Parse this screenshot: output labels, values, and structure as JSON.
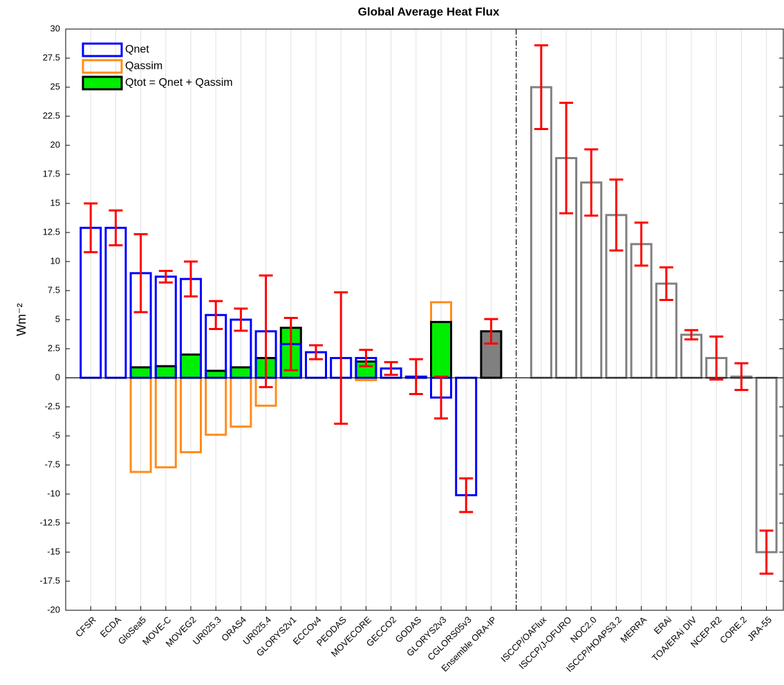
{
  "chart_data": {
    "type": "bar",
    "title": "Global Average Heat Flux",
    "y_label": "Wm⁻²",
    "categories": [
      "CFSR",
      "ECDA",
      "GloSea5",
      "MOVE-C",
      "MOVEG2",
      "UR025.3",
      "ORAS4",
      "UR025.4",
      "GLORYS2v1",
      "ECCOv4",
      "PEODAS",
      "MOVECORE",
      "GECCO2",
      "GODAS",
      "GLORYS2v3",
      "CGLORS05v3",
      "Ensemble ORA-IP",
      null,
      "ISCCP/OAFlux",
      "ISCCP/J-OFURO",
      "NOC2.0",
      "ISCCP/HOAPS3.2",
      "MERRA",
      "ERAi",
      "TOA/ERAi DIV",
      "NCEP-R2",
      "CORE.2",
      "JRA-55"
    ],
    "series": [
      {
        "name": "Qassim",
        "color": "#ff8c1a",
        "values": [
          null,
          null,
          -8.1,
          -7.7,
          -6.4,
          -4.9,
          -4.2,
          -2.4,
          1.4,
          null,
          null,
          -0.2,
          null,
          null,
          6.5,
          null,
          null,
          null,
          null,
          null,
          null,
          null,
          null,
          null,
          null,
          null,
          null,
          null
        ]
      },
      {
        "name": "Qtot = Qnet + Qassim",
        "color": "#000000",
        "fill": "#00ee00",
        "values": [
          null,
          null,
          0.9,
          1.0,
          2.0,
          0.6,
          0.9,
          1.7,
          4.3,
          null,
          null,
          1.4,
          null,
          null,
          4.8,
          null,
          null,
          null,
          null,
          null,
          null,
          null,
          null,
          null,
          null,
          null,
          null,
          null
        ]
      },
      {
        "name": "Qnet",
        "color": "#0000ff",
        "values": [
          12.9,
          12.9,
          9.0,
          8.7,
          8.5,
          5.4,
          5.0,
          4.0,
          2.9,
          2.2,
          1.7,
          1.7,
          0.8,
          0.1,
          -1.7,
          -10.1,
          null,
          null,
          null,
          null,
          null,
          null,
          null,
          null,
          null,
          null,
          null,
          null
        ],
        "errors": [
          2.1,
          1.5,
          3.35,
          0.5,
          1.5,
          1.2,
          0.95,
          4.8,
          2.25,
          0.6,
          5.65,
          0.7,
          0.55,
          1.5,
          1.8,
          1.45,
          null,
          null,
          null,
          null,
          null,
          null,
          null,
          null,
          null,
          null,
          null,
          null
        ]
      },
      {
        "color": "#000000",
        "fill": "#808080",
        "values": [
          null,
          null,
          null,
          null,
          null,
          null,
          null,
          null,
          null,
          null,
          null,
          null,
          null,
          null,
          null,
          null,
          4.0,
          null,
          null,
          null,
          null,
          null,
          null,
          null,
          null,
          null,
          null,
          null
        ],
        "errors": [
          null,
          null,
          null,
          null,
          null,
          null,
          null,
          null,
          null,
          null,
          null,
          null,
          null,
          null,
          null,
          null,
          1.05,
          null,
          null,
          null,
          null,
          null,
          null,
          null,
          null,
          null,
          null,
          null
        ]
      },
      {
        "color": "#808080",
        "values": [
          null,
          null,
          null,
          null,
          null,
          null,
          null,
          null,
          null,
          null,
          null,
          null,
          null,
          null,
          null,
          null,
          null,
          null,
          25.0,
          18.9,
          16.8,
          14.0,
          11.5,
          8.1,
          3.7,
          1.7,
          0.1,
          -15.0
        ],
        "errors": [
          null,
          null,
          null,
          null,
          null,
          null,
          null,
          null,
          null,
          null,
          null,
          null,
          null,
          null,
          null,
          null,
          null,
          null,
          3.6,
          4.75,
          2.85,
          3.05,
          1.85,
          1.4,
          0.4,
          1.85,
          1.15,
          1.85
        ]
      }
    ],
    "legend_order": [
      2,
      0,
      1
    ],
    "error_color": "#ff0000",
    "ylim": [
      -20,
      30
    ],
    "yticks": [
      -20,
      -17.5,
      -15,
      -12.5,
      -10,
      -7.5,
      -5,
      -2.5,
      0,
      2.5,
      5,
      7.5,
      10,
      12.5,
      15,
      17.5,
      20,
      22.5,
      25,
      27.5,
      30
    ],
    "grid": true,
    "legend": "upper left"
  }
}
